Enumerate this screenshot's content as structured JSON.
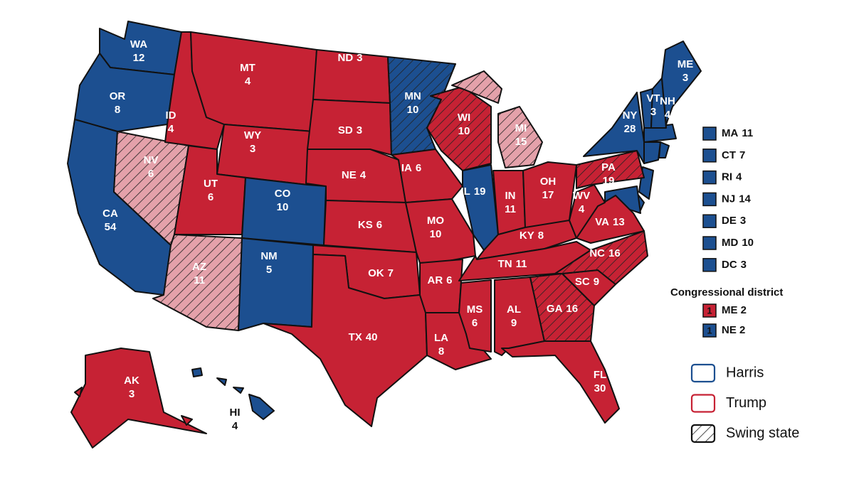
{
  "states": [
    {
      "abbr": "WA",
      "votes": 12,
      "color": "#1c4f90",
      "swing": false
    },
    {
      "abbr": "OR",
      "votes": 8,
      "color": "#1c4f90",
      "swing": false
    },
    {
      "abbr": "CA",
      "votes": 54,
      "color": "#1c4f90",
      "swing": false
    },
    {
      "abbr": "NV",
      "votes": 6,
      "color": "#e4a1aa",
      "swing": true
    },
    {
      "abbr": "ID",
      "votes": 4,
      "color": "#c62234",
      "swing": false
    },
    {
      "abbr": "MT",
      "votes": 4,
      "color": "#c62234",
      "swing": false
    },
    {
      "abbr": "WY",
      "votes": 3,
      "color": "#c62234",
      "swing": false
    },
    {
      "abbr": "UT",
      "votes": 6,
      "color": "#c62234",
      "swing": false
    },
    {
      "abbr": "CO",
      "votes": 10,
      "color": "#1c4f90",
      "swing": false
    },
    {
      "abbr": "AZ",
      "votes": 11,
      "color": "#e4a1aa",
      "swing": true
    },
    {
      "abbr": "NM",
      "votes": 5,
      "color": "#1c4f90",
      "swing": false
    },
    {
      "abbr": "ND",
      "votes": 3,
      "color": "#c62234",
      "swing": false
    },
    {
      "abbr": "SD",
      "votes": 3,
      "color": "#c62234",
      "swing": false
    },
    {
      "abbr": "NE",
      "votes": 4,
      "color": "#c62234",
      "swing": false
    },
    {
      "abbr": "KS",
      "votes": 6,
      "color": "#c62234",
      "swing": false
    },
    {
      "abbr": "OK",
      "votes": 7,
      "color": "#c62234",
      "swing": false
    },
    {
      "abbr": "TX",
      "votes": 40,
      "color": "#c62234",
      "swing": false
    },
    {
      "abbr": "MN",
      "votes": 10,
      "color": "#1c4f90",
      "swing": true
    },
    {
      "abbr": "IA",
      "votes": 6,
      "color": "#c62234",
      "swing": false
    },
    {
      "abbr": "MO",
      "votes": 10,
      "color": "#c62234",
      "swing": false
    },
    {
      "abbr": "AR",
      "votes": 6,
      "color": "#c62234",
      "swing": false
    },
    {
      "abbr": "LA",
      "votes": 8,
      "color": "#c62234",
      "swing": false
    },
    {
      "abbr": "WI",
      "votes": 10,
      "color": "#c62234",
      "swing": true
    },
    {
      "abbr": "MI",
      "votes": 15,
      "color": "#e4a1aa",
      "swing": true
    },
    {
      "abbr": "IL",
      "votes": 19,
      "color": "#1c4f90",
      "swing": false
    },
    {
      "abbr": "IN",
      "votes": 11,
      "color": "#c62234",
      "swing": false
    },
    {
      "abbr": "OH",
      "votes": 17,
      "color": "#c62234",
      "swing": false
    },
    {
      "abbr": "KY",
      "votes": 8,
      "color": "#c62234",
      "swing": false
    },
    {
      "abbr": "TN",
      "votes": 11,
      "color": "#c62234",
      "swing": false
    },
    {
      "abbr": "MS",
      "votes": 6,
      "color": "#c62234",
      "swing": false
    },
    {
      "abbr": "AL",
      "votes": 9,
      "color": "#c62234",
      "swing": false
    },
    {
      "abbr": "GA",
      "votes": 16,
      "color": "#c62234",
      "swing": true
    },
    {
      "abbr": "FL",
      "votes": 30,
      "color": "#c62234",
      "swing": false
    },
    {
      "abbr": "SC",
      "votes": 9,
      "color": "#c62234",
      "swing": false
    },
    {
      "abbr": "NC",
      "votes": 16,
      "color": "#c62234",
      "swing": true
    },
    {
      "abbr": "VA",
      "votes": 13,
      "color": "#c62234",
      "swing": false
    },
    {
      "abbr": "WV",
      "votes": 4,
      "color": "#c62234",
      "swing": false
    },
    {
      "abbr": "PA",
      "votes": 19,
      "color": "#c62234",
      "swing": true
    },
    {
      "abbr": "NY",
      "votes": 28,
      "color": "#1c4f90",
      "swing": false
    },
    {
      "abbr": "VT",
      "votes": 3,
      "color": "#1c4f90",
      "swing": false
    },
    {
      "abbr": "NH",
      "votes": 4,
      "color": "#1c4f90",
      "swing": false
    },
    {
      "abbr": "ME",
      "votes": 3,
      "color": "#1c4f90",
      "swing": false
    },
    {
      "abbr": "AK",
      "votes": 3,
      "color": "#c62234",
      "swing": false
    },
    {
      "abbr": "HI",
      "votes": 4,
      "color": "#1c4f90",
      "swing": false
    }
  ],
  "small_states": [
    {
      "abbr": "MA",
      "votes": 11,
      "color": "#1c4f90"
    },
    {
      "abbr": "CT",
      "votes": 7,
      "color": "#1c4f90"
    },
    {
      "abbr": "RI",
      "votes": 4,
      "color": "#1c4f90"
    },
    {
      "abbr": "NJ",
      "votes": 14,
      "color": "#1c4f90"
    },
    {
      "abbr": "DE",
      "votes": 3,
      "color": "#1c4f90"
    },
    {
      "abbr": "MD",
      "votes": 10,
      "color": "#1c4f90"
    },
    {
      "abbr": "DC",
      "votes": 3,
      "color": "#1c4f90"
    }
  ],
  "districts": {
    "title": "Congressional district",
    "items": [
      {
        "count": 1,
        "name": "ME 2",
        "color": "#c62234"
      },
      {
        "count": 1,
        "name": "NE 2",
        "color": "#1c4f90"
      }
    ]
  },
  "legend": [
    {
      "label": "Harris",
      "color": "#1c4f90"
    },
    {
      "label": "Trump",
      "color": "#c62234"
    },
    {
      "label": "Swing state",
      "color": "#111111",
      "hatch": true
    }
  ]
}
